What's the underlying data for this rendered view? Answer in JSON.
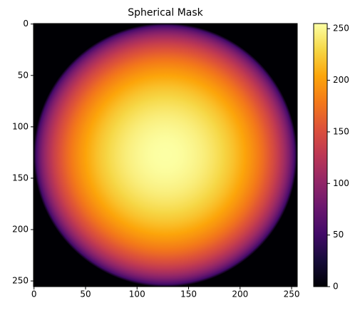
{
  "chart_data": {
    "type": "heatmap",
    "title": "Spherical Mask",
    "colormap": "inferno",
    "xlim": [
      -0.5,
      255.5
    ],
    "ylim": [
      255.5,
      -0.5
    ],
    "xticks": [
      0,
      50,
      100,
      150,
      200,
      250
    ],
    "yticks": [
      0,
      50,
      100,
      150,
      200,
      250
    ],
    "clim": [
      0,
      255
    ],
    "cticks": [
      0,
      50,
      100,
      150,
      200,
      250
    ],
    "sphere": {
      "center_x": 127.5,
      "center_y": 127.5,
      "radius": 128,
      "peak": 255
    }
  }
}
